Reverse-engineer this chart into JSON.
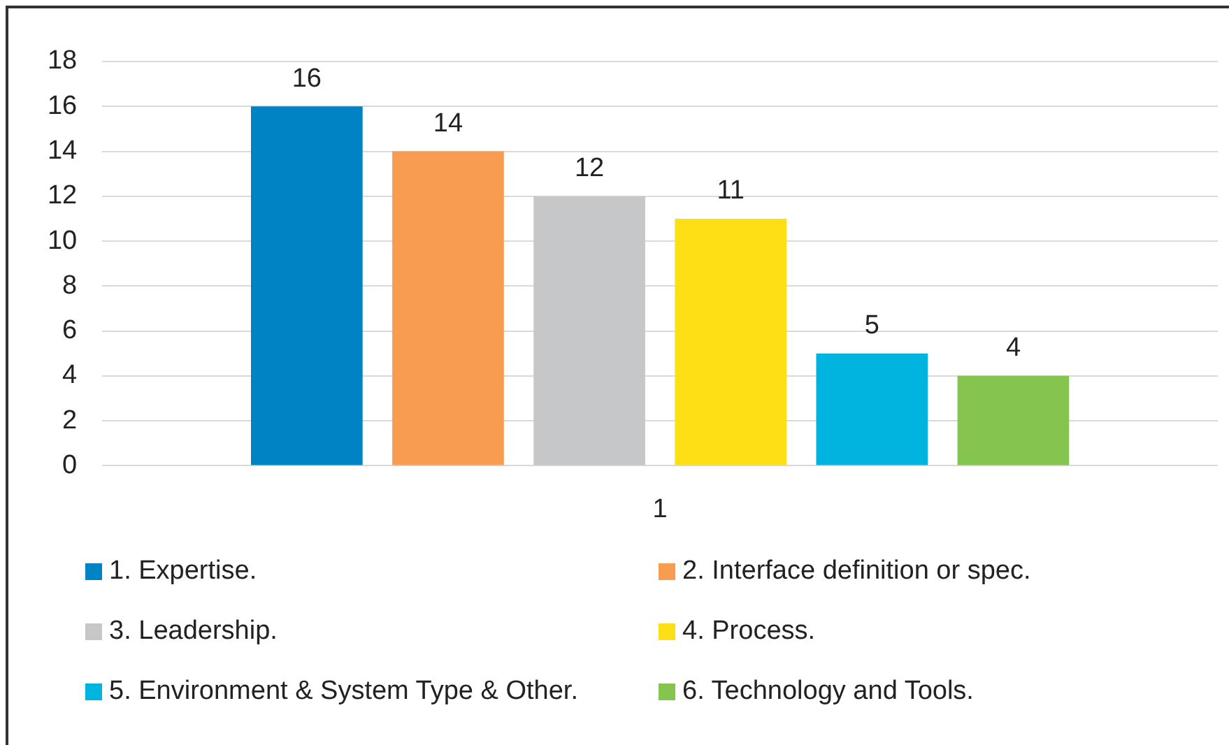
{
  "chart_data": {
    "type": "bar",
    "categories": [
      "1"
    ],
    "series": [
      {
        "name": "1. Expertise.",
        "color": "#0083c5",
        "values": [
          16
        ]
      },
      {
        "name": "2. Interface definition or spec.",
        "color": "#f79c50",
        "values": [
          14
        ]
      },
      {
        "name": "3. Leadership.",
        "color": "#c6c7c9",
        "values": [
          12
        ]
      },
      {
        "name": "4. Process.",
        "color": "#fedf15",
        "values": [
          11
        ]
      },
      {
        "name": "5. Environment & System Type & Other.",
        "color": "#00b4e0",
        "values": [
          5
        ]
      },
      {
        "name": "6. Technology and Tools.",
        "color": "#86c450",
        "values": [
          4
        ]
      }
    ],
    "ylim": [
      0,
      18
    ],
    "yticks": [
      0,
      2,
      4,
      6,
      8,
      10,
      12,
      14,
      16,
      18
    ],
    "grid": "y",
    "legend": "bottom",
    "data_labels": true
  }
}
